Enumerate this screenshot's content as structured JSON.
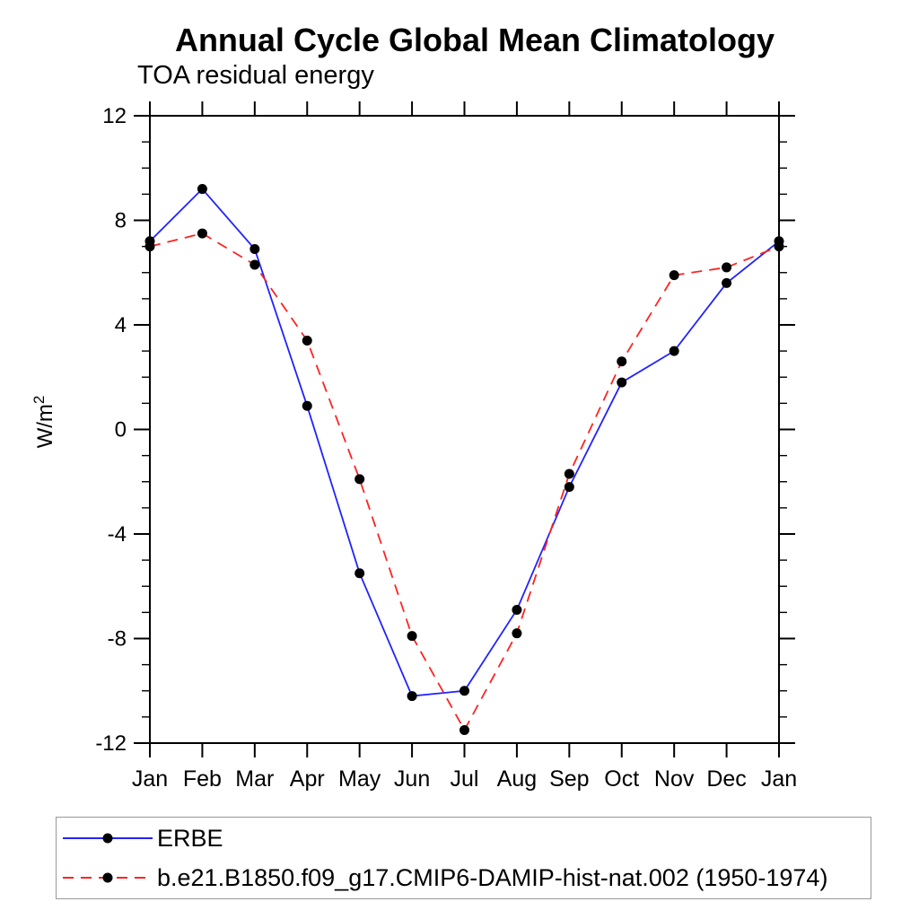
{
  "background_color": "#ffffff",
  "chart_data": {
    "type": "line",
    "title": "Annual Cycle Global Mean Climatology",
    "subtitle": "TOA residual energy",
    "ylabel": "W/m",
    "ylabel_superscript": "2",
    "categories": [
      "Jan",
      "Feb",
      "Mar",
      "Apr",
      "May",
      "Jun",
      "Jul",
      "Aug",
      "Sep",
      "Oct",
      "Nov",
      "Dec",
      "Jan"
    ],
    "ylim": [
      -12,
      12
    ],
    "ytick_labels": [
      "-12",
      "-8",
      "-4",
      "0",
      "4",
      "8",
      "12"
    ],
    "ytick_major_values": [
      -12,
      -8,
      -4,
      0,
      4,
      8,
      12
    ],
    "ytick_minor_step": 1,
    "grid": false,
    "axis_color": "#000000",
    "legend_position": "bottom-left-box",
    "series": [
      {
        "name": "ERBE",
        "color": "#2222ff",
        "line_style": "solid",
        "marker": "filled-circle",
        "marker_color": "#000000",
        "values": [
          7.2,
          9.2,
          6.9,
          0.9,
          -5.5,
          -10.2,
          -10.0,
          -6.9,
          -2.2,
          1.8,
          3.0,
          5.6,
          7.2
        ]
      },
      {
        "name": "b.e21.B1850.f09_g17.CMIP6-DAMIP-hist-nat.002 (1950-1974)",
        "color": "#ff2222",
        "line_style": "dashed",
        "marker": "filled-circle",
        "marker_color": "#000000",
        "values": [
          7.0,
          7.5,
          6.3,
          3.4,
          -1.9,
          -7.9,
          -11.5,
          -7.8,
          -1.7,
          2.6,
          5.9,
          6.2,
          7.0
        ]
      }
    ]
  }
}
